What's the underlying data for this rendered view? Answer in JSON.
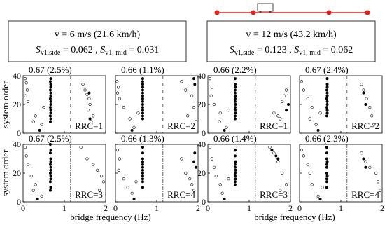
{
  "headers": [
    {
      "speed": "v = 6 m/s (21.6 km/h)",
      "sym": "S",
      "sub1": "v1,side",
      "val1": " = 0.062 , ",
      "sub2": "v1, mid",
      "val2": " = 0.031"
    },
    {
      "speed": "v = 12 m/s (43.2 km/h)",
      "sym": "S",
      "sub1": "v1,side",
      "val1": " = 0.123 , ",
      "sub2": "v1, mid",
      "val2": " = 0.062"
    }
  ],
  "ylabel": "system order",
  "xlabel": "bridge frequency (Hz)",
  "chart_data": [
    {
      "type": "scatter",
      "title": "0.67 (2.5%)",
      "annotation": "RRC=1",
      "xlim": [
        0,
        2
      ],
      "ylim": [
        0,
        40
      ],
      "xticks": [
        0,
        1,
        2
      ],
      "yticks": [
        0,
        20,
        40
      ],
      "series": [
        {
          "marker": "open",
          "x": [
            0.05,
            0.08,
            0.1,
            0.06,
            0.12,
            0.3,
            0.25,
            0.5,
            0.45,
            1.45,
            1.5,
            1.55,
            1.6,
            1.62,
            1.7,
            1.58,
            1.65,
            1.48
          ],
          "values": [
            38,
            35,
            30,
            26,
            22,
            12,
            8,
            18,
            6,
            34,
            30,
            27,
            24,
            20,
            12,
            16,
            8,
            5
          ]
        },
        {
          "marker": "filled",
          "x": [
            0.4,
            0.66,
            0.67,
            0.66,
            0.67,
            0.67,
            0.66,
            0.67,
            0.67,
            0.66,
            0.67,
            0.67,
            0.66,
            0.67,
            0.67,
            0.66,
            0.67,
            1.6,
            1.62
          ],
          "values": [
            2,
            8,
            10,
            12,
            14,
            16,
            18,
            20,
            22,
            24,
            26,
            28,
            30,
            32,
            34,
            36,
            38,
            28,
            10
          ]
        }
      ]
    },
    {
      "type": "scatter",
      "title": "0.66 (1.1%)",
      "annotation": "RRC=2",
      "xlim": [
        0,
        2
      ],
      "ylim": [
        0,
        40
      ],
      "xticks": [
        0,
        1,
        2
      ],
      "yticks": [
        0,
        20,
        40
      ],
      "series": [
        {
          "marker": "open",
          "x": [
            0.04,
            0.07,
            0.05,
            0.1,
            0.2,
            0.35,
            0.45,
            0.55,
            1.6,
            1.7,
            1.85,
            1.9,
            1.75,
            1.95
          ],
          "values": [
            36,
            32,
            28,
            24,
            18,
            10,
            4,
            14,
            36,
            30,
            26,
            18,
            12,
            8
          ]
        },
        {
          "marker": "filled",
          "x": [
            0.4,
            0.66,
            0.66,
            0.66,
            0.66,
            0.66,
            0.66,
            0.66,
            0.66,
            0.66,
            0.66,
            0.66,
            0.66,
            0.66,
            0.66,
            0.66,
            1.9,
            1.92
          ],
          "values": [
            2,
            10,
            12,
            14,
            16,
            18,
            20,
            22,
            24,
            26,
            28,
            30,
            32,
            34,
            36,
            38,
            38,
            34
          ]
        }
      ]
    },
    {
      "type": "scatter",
      "title": "0.66 (2.2%)",
      "annotation": "RRC=1",
      "xlim": [
        0,
        2
      ],
      "ylim": [
        0,
        40
      ],
      "xticks": [
        0,
        1,
        2
      ],
      "yticks": [
        0,
        20,
        40
      ],
      "series": [
        {
          "marker": "open",
          "x": [
            0.05,
            0.1,
            0.08,
            0.15,
            0.3,
            0.28,
            0.45,
            0.5,
            1.6,
            1.7,
            1.75,
            1.8,
            1.85,
            1.9
          ],
          "values": [
            38,
            32,
            26,
            20,
            14,
            8,
            4,
            16,
            14,
            12,
            10,
            22,
            26,
            30
          ]
        },
        {
          "marker": "filled",
          "x": [
            0.4,
            0.66,
            0.66,
            0.67,
            0.66,
            0.66,
            0.67,
            0.66,
            0.66,
            0.67,
            0.66,
            0.66,
            0.67,
            0.66,
            0.66,
            1.95,
            1.9
          ],
          "values": [
            2,
            10,
            12,
            14,
            16,
            18,
            20,
            22,
            24,
            26,
            28,
            30,
            32,
            34,
            38,
            20,
            16
          ]
        }
      ]
    },
    {
      "type": "scatter",
      "title": "0.67 (2.4%)",
      "annotation": "RRC=2",
      "xlim": [
        0,
        2
      ],
      "ylim": [
        0,
        40
      ],
      "xticks": [
        0,
        1,
        2
      ],
      "yticks": [
        0,
        20,
        40
      ],
      "series": [
        {
          "marker": "open",
          "x": [
            0.05,
            0.1,
            0.2,
            0.3,
            0.25,
            0.4,
            0.5,
            1.5,
            1.55,
            1.62,
            1.7,
            1.75,
            1.8
          ],
          "values": [
            36,
            30,
            24,
            18,
            10,
            6,
            14,
            34,
            30,
            24,
            18,
            12,
            6
          ]
        },
        {
          "marker": "filled",
          "x": [
            0.45,
            0.66,
            0.67,
            0.67,
            0.66,
            0.67,
            0.67,
            0.66,
            0.67,
            0.67,
            0.66,
            0.67,
            0.67,
            0.67,
            1.55,
            1.6
          ],
          "values": [
            2,
            12,
            14,
            16,
            18,
            20,
            22,
            24,
            26,
            28,
            30,
            32,
            34,
            38,
            28,
            20
          ]
        }
      ]
    },
    {
      "type": "scatter",
      "title": "0.67 (2.5%)",
      "annotation": "RRC=3",
      "xlim": [
        0,
        2
      ],
      "ylim": [
        0,
        40
      ],
      "xticks": [
        0,
        1,
        2
      ],
      "yticks": [
        0,
        20,
        40
      ],
      "series": [
        {
          "marker": "open",
          "x": [
            0.05,
            0.08,
            0.12,
            0.2,
            0.3,
            0.25,
            0.45,
            1.4,
            1.55,
            1.7,
            1.8,
            1.9,
            1.95,
            1.85
          ],
          "values": [
            38,
            32,
            26,
            18,
            12,
            8,
            4,
            38,
            30,
            26,
            22,
            18,
            14,
            8
          ]
        },
        {
          "marker": "filled",
          "x": [
            0.35,
            0.66,
            0.67,
            0.66,
            0.67,
            0.67,
            0.66,
            0.67,
            0.67,
            0.66,
            0.67,
            0.67,
            0.66,
            0.67,
            0.66
          ],
          "values": [
            2,
            8,
            10,
            14,
            16,
            18,
            20,
            22,
            24,
            26,
            28,
            30,
            34,
            36,
            40
          ]
        }
      ]
    },
    {
      "type": "scatter",
      "title": "0.66 (1.3%)",
      "annotation": "RRC=4",
      "xlim": [
        0,
        2
      ],
      "ylim": [
        0,
        40
      ],
      "xticks": [
        0,
        1,
        2
      ],
      "yticks": [
        0,
        20,
        40
      ],
      "series": [
        {
          "marker": "open",
          "x": [
            0.05,
            0.1,
            0.08,
            0.2,
            0.3,
            0.4,
            0.5,
            1.6,
            1.7,
            1.8,
            1.85,
            1.9
          ],
          "values": [
            36,
            30,
            22,
            16,
            10,
            6,
            14,
            30,
            20,
            16,
            12,
            8
          ]
        },
        {
          "marker": "filled",
          "x": [
            0.45,
            0.66,
            0.66,
            0.66,
            0.66,
            0.66,
            0.66,
            0.66,
            0.66,
            0.66,
            0.66,
            0.66,
            0.66,
            1.95,
            1.9,
            1.92
          ],
          "values": [
            2,
            10,
            14,
            16,
            18,
            20,
            22,
            24,
            26,
            28,
            30,
            34,
            38,
            24,
            28,
            34
          ]
        }
      ]
    },
    {
      "type": "scatter",
      "title": "0.66 (1.4%)",
      "annotation": "RRC=3",
      "xlim": [
        0,
        2
      ],
      "ylim": [
        0,
        40
      ],
      "xticks": [
        0,
        1,
        2
      ],
      "yticks": [
        0,
        20,
        40
      ],
      "series": [
        {
          "marker": "open",
          "x": [
            0.05,
            0.1,
            0.15,
            0.2,
            0.3,
            0.35,
            0.5,
            1.5,
            1.6,
            1.7,
            1.8,
            1.9,
            1.75
          ],
          "values": [
            38,
            30,
            24,
            18,
            12,
            6,
            16,
            38,
            34,
            28,
            20,
            12,
            8
          ]
        },
        {
          "marker": "filled",
          "x": [
            0.4,
            0.66,
            0.66,
            0.67,
            0.66,
            0.66,
            0.67,
            0.66,
            0.66,
            0.67,
            0.66,
            0.66,
            1.55,
            1.65,
            1.7
          ],
          "values": [
            2,
            12,
            14,
            16,
            18,
            20,
            22,
            24,
            26,
            28,
            32,
            36,
            36,
            32,
            30
          ]
        }
      ]
    },
    {
      "type": "scatter",
      "title": "0.66 (2.3%)",
      "annotation": "RRC=4",
      "xlim": [
        0,
        2
      ],
      "ylim": [
        0,
        40
      ],
      "xticks": [
        0,
        1,
        2
      ],
      "yticks": [
        0,
        20,
        40
      ],
      "series": [
        {
          "marker": "open",
          "x": [
            0.05,
            0.1,
            0.2,
            0.25,
            0.3,
            0.45,
            0.55,
            1.5,
            1.6,
            1.7,
            1.85,
            1.9,
            1.95
          ],
          "values": [
            36,
            32,
            26,
            20,
            12,
            4,
            10,
            34,
            28,
            24,
            20,
            14,
            8
          ]
        },
        {
          "marker": "filled",
          "x": [
            0.5,
            0.66,
            0.66,
            0.66,
            0.67,
            0.66,
            0.66,
            0.66,
            0.67,
            0.66,
            0.66,
            0.66,
            1.55,
            1.6
          ],
          "values": [
            2,
            10,
            14,
            16,
            18,
            20,
            24,
            26,
            28,
            30,
            34,
            38,
            30,
            24
          ]
        }
      ]
    }
  ]
}
